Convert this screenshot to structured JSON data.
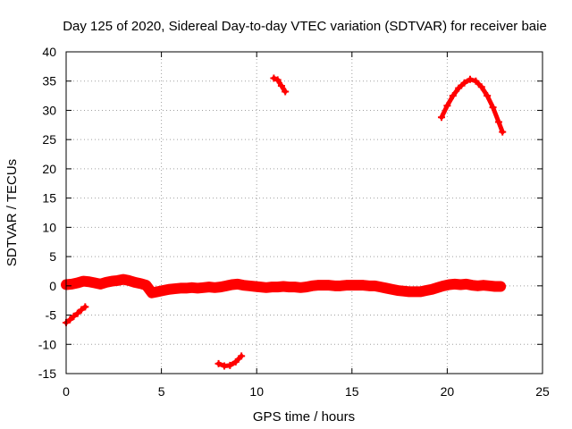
{
  "chart_data": {
    "type": "scatter",
    "title": "Day 125 of 2020, Sidereal Day-to-day VTEC variation (SDTVAR) for receiver baie",
    "xlabel": "GPS time / hours",
    "ylabel": "SDTVAR / TECUs",
    "xlim": [
      0,
      25
    ],
    "ylim": [
      -15,
      40
    ],
    "xticks": [
      0,
      5,
      10,
      15,
      20,
      25
    ],
    "yticks": [
      -15,
      -10,
      -5,
      0,
      5,
      10,
      15,
      20,
      25,
      30,
      35,
      40
    ],
    "grid": true,
    "marker_color": "#ff0000",
    "series": [
      {
        "name": "main",
        "x": [
          0.0,
          0.3,
          0.6,
          0.9,
          1.2,
          1.5,
          1.8,
          2.1,
          2.4,
          2.7,
          3.0,
          3.3,
          3.6,
          3.9,
          4.2,
          4.5,
          4.8,
          5.1,
          5.4,
          5.7,
          6.0,
          6.3,
          6.6,
          6.9,
          7.2,
          7.5,
          7.8,
          8.1,
          8.4,
          8.7,
          9.0,
          9.3,
          9.6,
          9.9,
          10.2,
          10.5,
          10.8,
          11.1,
          11.4,
          11.7,
          12.0,
          12.3,
          12.6,
          12.9,
          13.2,
          13.5,
          13.8,
          14.1,
          14.4,
          14.7,
          15.0,
          15.3,
          15.6,
          15.9,
          16.2,
          16.5,
          16.8,
          17.1,
          17.4,
          17.7,
          18.0,
          18.3,
          18.6,
          18.9,
          19.2,
          19.5,
          19.8,
          20.1,
          20.4,
          20.7,
          21.0,
          21.3,
          21.6,
          21.9,
          22.2,
          22.5,
          22.8
        ],
        "y": [
          0.2,
          0.3,
          0.5,
          0.8,
          0.7,
          0.5,
          0.3,
          0.6,
          0.8,
          0.9,
          1.1,
          0.9,
          0.6,
          0.4,
          0.1,
          -1.2,
          -1.0,
          -0.8,
          -0.6,
          -0.5,
          -0.4,
          -0.4,
          -0.3,
          -0.4,
          -0.3,
          -0.2,
          -0.3,
          -0.2,
          0.0,
          0.2,
          0.3,
          0.1,
          0.0,
          -0.1,
          -0.2,
          -0.3,
          -0.2,
          -0.2,
          -0.1,
          -0.2,
          -0.2,
          -0.3,
          -0.2,
          0.0,
          0.1,
          0.1,
          0.1,
          0.0,
          0.0,
          0.1,
          0.1,
          0.1,
          0.1,
          0.0,
          0.0,
          -0.2,
          -0.4,
          -0.6,
          -0.8,
          -0.9,
          -1.0,
          -1.0,
          -1.0,
          -0.8,
          -0.6,
          -0.3,
          0.0,
          0.2,
          0.3,
          0.2,
          0.3,
          0.1,
          0.0,
          0.1,
          0.0,
          -0.1,
          -0.1
        ]
      },
      {
        "name": "segment-negative-start",
        "x": [
          0.0,
          0.2,
          0.4,
          0.6,
          0.8,
          1.0
        ],
        "y": [
          -6.3,
          -5.8,
          -5.2,
          -4.7,
          -4.1,
          -3.6
        ]
      },
      {
        "name": "segment-around-8h",
        "x": [
          8.0,
          8.3,
          8.6,
          8.9,
          9.2
        ],
        "y": [
          -13.3,
          -13.7,
          -13.6,
          -13.0,
          -12.0
        ]
      },
      {
        "name": "segment-around-11h",
        "x": [
          10.9,
          11.1,
          11.3,
          11.5
        ],
        "y": [
          35.5,
          35.2,
          34.2,
          33.2
        ]
      },
      {
        "name": "arc-evening",
        "x": [
          19.7,
          20.0,
          20.3,
          20.6,
          20.9,
          21.2,
          21.5,
          21.8,
          22.1,
          22.4,
          22.7,
          22.9
        ],
        "y": [
          28.8,
          30.8,
          32.5,
          33.8,
          34.7,
          35.3,
          35.0,
          34.0,
          32.5,
          30.5,
          28.0,
          26.3
        ]
      }
    ]
  }
}
